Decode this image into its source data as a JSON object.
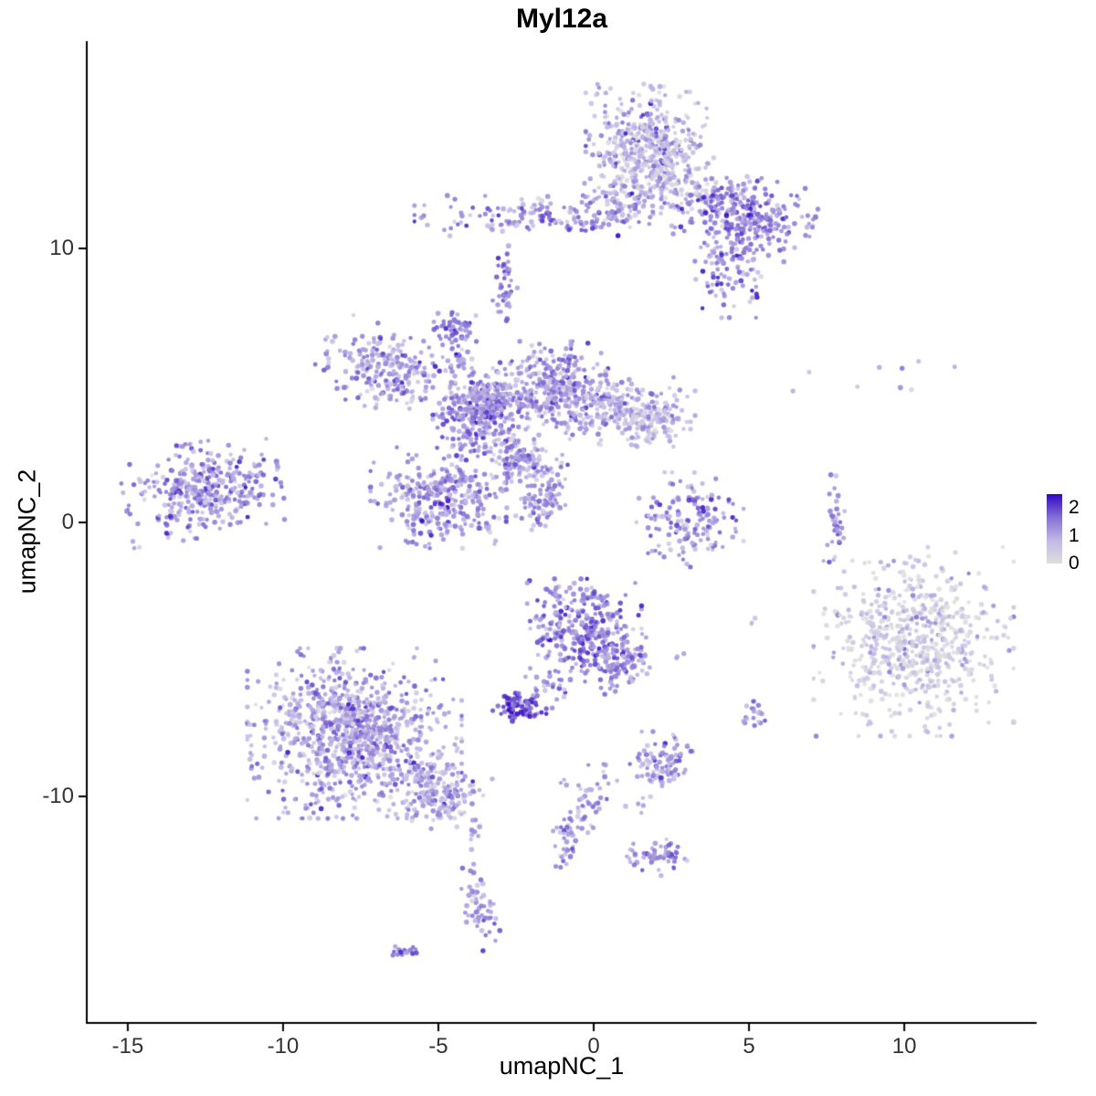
{
  "title": "Myl12a",
  "chart_data": {
    "type": "scatter",
    "title": "Myl12a",
    "subtitle": "",
    "xlabel": "umapNC_1",
    "ylabel": "umapNC_2",
    "xlim": [
      -16.32,
      14.26
    ],
    "ylim": [
      -18.27,
      17.57
    ],
    "xticks": [
      -15,
      -10,
      -5,
      0,
      5,
      10
    ],
    "yticks": [
      -10,
      0,
      10
    ],
    "grid": false,
    "axis_color": "#000000",
    "tick_label_color": "#333333",
    "legend": {
      "position": "right",
      "ticks": [
        2,
        1,
        0
      ],
      "max": 2.5
    },
    "color_scale": {
      "stops": [
        {
          "t": 0.0,
          "color": "#DEDEDE"
        },
        {
          "t": 0.33,
          "color": "#C2B9E6"
        },
        {
          "t": 0.66,
          "color": "#8571D3"
        },
        {
          "t": 1.0,
          "color": "#3208C4"
        }
      ]
    },
    "point": {
      "radius": 2.5,
      "alpha": 0.85
    },
    "seed": 42,
    "clusters": [
      {
        "name": "top-main",
        "x": 1.7,
        "y": 13.7,
        "sx": 0.85,
        "sy": 1.0,
        "rot": 0,
        "n": 430,
        "expr": 0.95,
        "expr_sd": 0.6
      },
      {
        "name": "top-main-fringe",
        "x": 2.8,
        "y": 12.5,
        "sx": 0.7,
        "sy": 0.6,
        "rot": -30,
        "n": 110,
        "expr": 0.7,
        "expr_sd": 0.45
      },
      {
        "name": "top-right-dense",
        "x": 4.8,
        "y": 11.3,
        "sx": 1.0,
        "sy": 0.6,
        "rot": -15,
        "n": 290,
        "expr": 1.55,
        "expr_sd": 0.45
      },
      {
        "name": "top-right-lower",
        "x": 4.4,
        "y": 9.2,
        "sx": 0.55,
        "sy": 0.75,
        "rot": 0,
        "n": 110,
        "expr": 1.45,
        "expr_sd": 0.5
      },
      {
        "name": "top-band",
        "x": -1.4,
        "y": 11.2,
        "sx": 1.9,
        "sy": 0.32,
        "rot": 0,
        "n": 170,
        "expr": 1.35,
        "expr_sd": 0.45
      },
      {
        "name": "band-bridge",
        "x": 1.0,
        "y": 11.7,
        "sx": 0.6,
        "sy": 0.4,
        "rot": 0,
        "n": 70,
        "expr": 1.0,
        "expr_sd": 0.4
      },
      {
        "name": "small-upper-streak",
        "x": -2.9,
        "y": 8.6,
        "sx": 0.2,
        "sy": 0.65,
        "rot": 0,
        "n": 40,
        "expr": 1.5,
        "expr_sd": 0.4
      },
      {
        "name": "small-mid-blob",
        "x": -4.5,
        "y": 7.1,
        "sx": 0.36,
        "sy": 0.28,
        "rot": 0,
        "n": 48,
        "expr": 1.5,
        "expr_sd": 0.4
      },
      {
        "name": "chain-to-center",
        "x": -4.2,
        "y": 5.9,
        "sx": 0.22,
        "sy": 0.55,
        "rot": 20,
        "n": 28,
        "expr": 1.4,
        "expr_sd": 0.4
      },
      {
        "name": "mid-left",
        "x": -6.7,
        "y": 5.6,
        "sx": 0.95,
        "sy": 0.65,
        "rot": -20,
        "n": 230,
        "expr": 1.25,
        "expr_sd": 0.5
      },
      {
        "name": "central-node",
        "x": -3.8,
        "y": 3.9,
        "sx": 0.6,
        "sy": 0.6,
        "rot": 0,
        "n": 280,
        "expr": 1.5,
        "expr_sd": 0.45
      },
      {
        "name": "central-upper",
        "x": -1.2,
        "y": 5.0,
        "sx": 0.85,
        "sy": 0.7,
        "rot": 0,
        "n": 280,
        "expr": 1.35,
        "expr_sd": 0.5
      },
      {
        "name": "central-right",
        "x": 0.5,
        "y": 4.1,
        "sx": 0.9,
        "sy": 0.55,
        "rot": 0,
        "n": 210,
        "expr": 1.0,
        "expr_sd": 0.5
      },
      {
        "name": "central-right-arm",
        "x": 2.0,
        "y": 3.8,
        "sx": 0.55,
        "sy": 0.45,
        "rot": 0,
        "n": 110,
        "expr": 0.8,
        "expr_sd": 0.45
      },
      {
        "name": "central-lower-lobe",
        "x": -5.0,
        "y": 0.9,
        "sx": 0.95,
        "sy": 0.8,
        "rot": 0,
        "n": 340,
        "expr": 1.3,
        "expr_sd": 0.5
      },
      {
        "name": "central-bridge",
        "x": -2.3,
        "y": 2.3,
        "sx": 0.8,
        "sy": 0.45,
        "rot": -35,
        "n": 170,
        "expr": 1.15,
        "expr_sd": 0.5
      },
      {
        "name": "central-streak",
        "x": -1.6,
        "y": 0.8,
        "sx": 0.3,
        "sy": 0.45,
        "rot": -45,
        "n": 70,
        "expr": 1.4,
        "expr_sd": 0.4
      },
      {
        "name": "central-left-bridge",
        "x": -3.2,
        "y": 4.6,
        "sx": 0.6,
        "sy": 0.45,
        "rot": 0,
        "n": 130,
        "expr": 1.25,
        "expr_sd": 0.45
      },
      {
        "name": "far-left",
        "x": -12.6,
        "y": 1.2,
        "sx": 1.1,
        "sy": 0.75,
        "rot": 10,
        "n": 390,
        "expr": 1.25,
        "expr_sd": 0.5
      },
      {
        "name": "right-crescent",
        "x": 3.1,
        "y": 0.1,
        "sx": 0.75,
        "sy": 0.75,
        "rot": 0,
        "n": 150,
        "expr": 1.3,
        "expr_sd": 0.5
      },
      {
        "name": "right-vstreak",
        "x": 7.8,
        "y": 0.2,
        "sx": 0.12,
        "sy": 0.8,
        "rot": 0,
        "n": 35,
        "expr": 1.35,
        "expr_sd": 0.4
      },
      {
        "name": "sparse-top-right",
        "x": 8.8,
        "y": 5.9,
        "sx": 1.4,
        "sy": 0.8,
        "rot": 0,
        "n": 9,
        "expr": 0.9,
        "expr_sd": 0.5
      },
      {
        "name": "right-big",
        "x": 10.3,
        "y": -4.35,
        "sx": 1.4,
        "sy": 1.5,
        "rot": 0,
        "n": 650,
        "expr": 0.45,
        "expr_sd": 0.5
      },
      {
        "name": "lower-mid",
        "x": -0.3,
        "y": -3.9,
        "sx": 0.8,
        "sy": 0.8,
        "rot": 0,
        "n": 310,
        "expr": 1.5,
        "expr_sd": 0.45
      },
      {
        "name": "lower-mid-arm",
        "x": 0.9,
        "y": -5.2,
        "sx": 0.35,
        "sy": 0.55,
        "rot": -45,
        "n": 90,
        "expr": 1.4,
        "expr_sd": 0.45
      },
      {
        "name": "dark-dense-blob",
        "x": -2.4,
        "y": -6.7,
        "sx": 0.38,
        "sy": 0.24,
        "rot": 0,
        "n": 75,
        "expr": 2.0,
        "expr_sd": 0.35
      },
      {
        "name": "blob-trail",
        "x": -1.5,
        "y": -6.1,
        "sx": 0.5,
        "sy": 0.35,
        "rot": -20,
        "n": 30,
        "expr": 1.3,
        "expr_sd": 0.4
      },
      {
        "name": "lower-left",
        "x": -7.7,
        "y": -7.7,
        "sx": 1.5,
        "sy": 1.35,
        "rot": 0,
        "n": 950,
        "expr": 1.15,
        "expr_sd": 0.5
      },
      {
        "name": "lower-left-tail",
        "x": -5.2,
        "y": -9.8,
        "sx": 0.85,
        "sy": 0.55,
        "rot": -25,
        "n": 220,
        "expr": 1.1,
        "expr_sd": 0.5
      },
      {
        "name": "small-lower-right",
        "x": 2.2,
        "y": -8.9,
        "sx": 0.45,
        "sy": 0.55,
        "rot": 0,
        "n": 95,
        "expr": 1.3,
        "expr_sd": 0.45
      },
      {
        "name": "dots-mid-right",
        "x": 5.1,
        "y": -7.0,
        "sx": 0.18,
        "sy": 0.25,
        "rot": 0,
        "n": 18,
        "expr": 1.45,
        "expr_sd": 0.4
      },
      {
        "name": "lower-arm",
        "x": -0.4,
        "y": -10.9,
        "sx": 0.3,
        "sy": 0.95,
        "rot": -25,
        "n": 75,
        "expr": 1.25,
        "expr_sd": 0.45
      },
      {
        "name": "small-bottom-right",
        "x": 2.1,
        "y": -12.2,
        "sx": 0.45,
        "sy": 0.3,
        "rot": 0,
        "n": 55,
        "expr": 1.45,
        "expr_sd": 0.4
      },
      {
        "name": "small-bottom-left",
        "x": -3.7,
        "y": -13.9,
        "sx": 0.28,
        "sy": 0.85,
        "rot": 15,
        "n": 65,
        "expr": 1.4,
        "expr_sd": 0.45
      },
      {
        "name": "tiny-bottom",
        "x": -6.1,
        "y": -15.7,
        "sx": 0.22,
        "sy": 0.13,
        "rot": 0,
        "n": 16,
        "expr": 1.5,
        "expr_sd": 0.35
      },
      {
        "name": "stray-a",
        "x": -3.8,
        "y": -11.4,
        "sx": 0.15,
        "sy": 0.15,
        "rot": 0,
        "n": 5,
        "expr": 1.2,
        "expr_sd": 0.3
      },
      {
        "name": "stray-b",
        "x": 1.4,
        "y": -10.2,
        "sx": 0.2,
        "sy": 0.2,
        "rot": 0,
        "n": 5,
        "expr": 1.2,
        "expr_sd": 0.3
      },
      {
        "name": "stray-c",
        "x": 5.1,
        "y": -3.6,
        "sx": 0.15,
        "sy": 0.15,
        "rot": 0,
        "n": 3,
        "expr": 1.1,
        "expr_sd": 0.3
      },
      {
        "name": "stray-d",
        "x": 2.9,
        "y": -5.0,
        "sx": 0.12,
        "sy": 0.12,
        "rot": 0,
        "n": 3,
        "expr": 1.3,
        "expr_sd": 0.3
      },
      {
        "name": "stray-e",
        "x": -0.6,
        "y": -9.4,
        "sx": 0.2,
        "sy": 0.2,
        "rot": 0,
        "n": 4,
        "expr": 1.3,
        "expr_sd": 0.3
      }
    ]
  }
}
